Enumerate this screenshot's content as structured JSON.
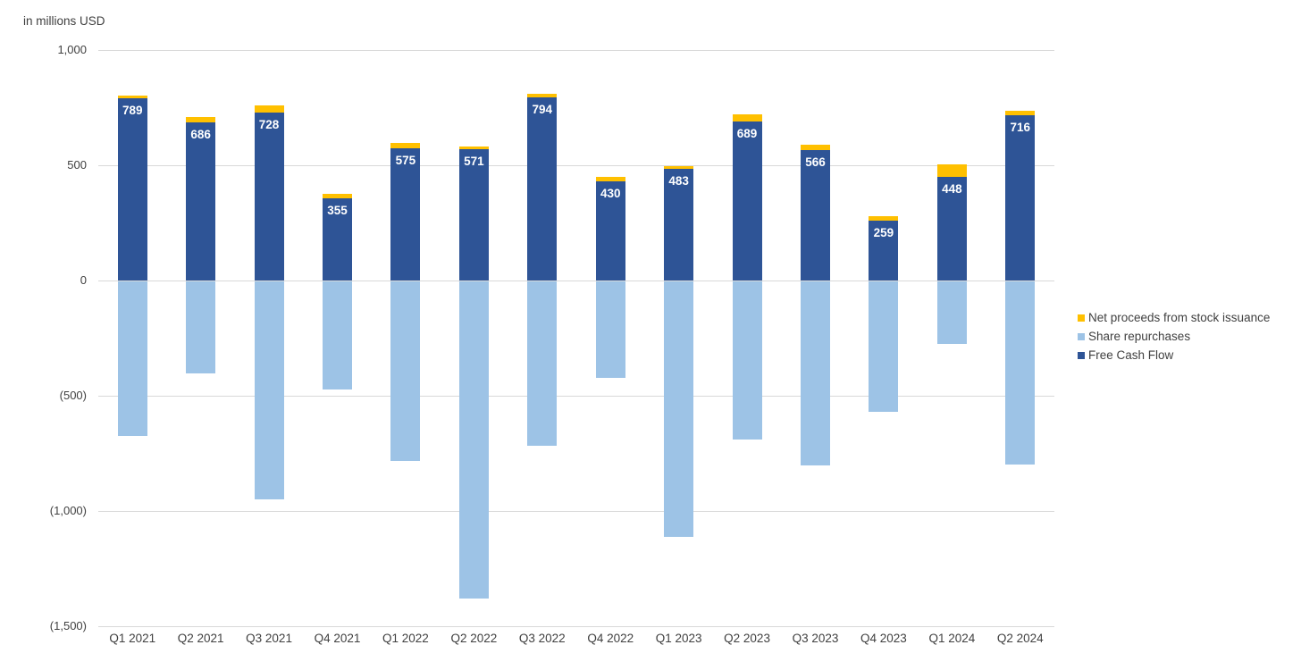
{
  "chart_data": {
    "type": "bar",
    "stacked": true,
    "title": "in millions USD",
    "unit": "millions USD",
    "categories": [
      "Q1 2021",
      "Q2 2021",
      "Q3 2021",
      "Q4 2021",
      "Q1 2022",
      "Q2 2022",
      "Q3 2022",
      "Q4 2022",
      "Q1 2023",
      "Q2 2023",
      "Q3 2023",
      "Q4 2023",
      "Q1 2024",
      "Q2 2024"
    ],
    "series": [
      {
        "name": "Net proceeds from stock issuance",
        "color": "#FFC000",
        "values": [
          15,
          25,
          30,
          20,
          22,
          12,
          18,
          20,
          15,
          30,
          22,
          20,
          55,
          22
        ]
      },
      {
        "name": "Share repurchases",
        "color": "#9DC3E6",
        "values": [
          -670,
          -400,
          -945,
          -470,
          -780,
          -1375,
          -715,
          -420,
          -1110,
          -685,
          -800,
          -565,
          -270,
          -795
        ]
      },
      {
        "name": "Free Cash Flow",
        "color": "#2E5496",
        "values": [
          789,
          686,
          728,
          355,
          575,
          571,
          794,
          430,
          483,
          689,
          566,
          259,
          448,
          716
        ],
        "data_labels": true
      }
    ],
    "data_label_color": "#FFFFFF",
    "ylim": [
      -1500,
      1000
    ],
    "yticks": [
      1000,
      500,
      0,
      -500,
      -1000,
      -1500
    ],
    "ytick_labels": [
      "1,000",
      "500",
      "0",
      "(500)",
      "(1,000)",
      "(1,500)"
    ],
    "grid": true,
    "gridline_color": "#D9D9D9",
    "text_color": "#404040",
    "legend_position": "right",
    "legend": [
      "Net proceeds from stock issuance",
      "Share repurchases",
      "Free Cash Flow"
    ]
  }
}
